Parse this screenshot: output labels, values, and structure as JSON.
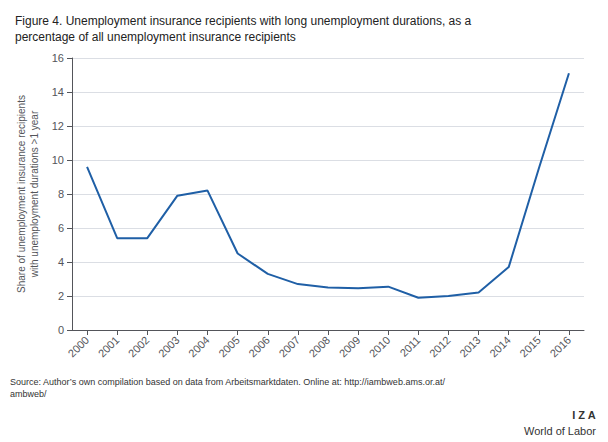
{
  "chart_data": {
    "type": "line",
    "title": "Figure 4. Unemployment insurance recipients with long unemployment durations, as a\npercentage of all unemployment insurance recipients",
    "ylabel": "Share of unemployment insurance recipients\nwith unemployment durations >1 year",
    "x": [
      2000,
      2001,
      2002,
      2003,
      2004,
      2005,
      2006,
      2007,
      2008,
      2009,
      2010,
      2011,
      2012,
      2013,
      2014,
      2015,
      2016
    ],
    "values": [
      9.6,
      5.4,
      5.4,
      7.9,
      8.2,
      4.5,
      3.3,
      2.7,
      2.5,
      2.45,
      2.55,
      1.9,
      2.0,
      2.2,
      3.7,
      9.5,
      15.1
    ],
    "color": "#1f5fa6",
    "xlim": [
      1999.5,
      2016.5
    ],
    "xticks": [
      2000,
      2001,
      2002,
      2003,
      2004,
      2005,
      2006,
      2007,
      2008,
      2009,
      2010,
      2011,
      2012,
      2013,
      2014,
      2015,
      2016
    ],
    "ylim": [
      0,
      16
    ],
    "yticks": [
      0,
      2,
      4,
      6,
      8,
      10,
      12,
      14,
      16
    ],
    "grid": true,
    "annotations": [
      "Source: Author’s own compilation based on data from Arbeitsmarktdaten. Online at: http://iambweb.ams.or.at/\nambweb/",
      "I Z A",
      "World of Labor"
    ]
  }
}
